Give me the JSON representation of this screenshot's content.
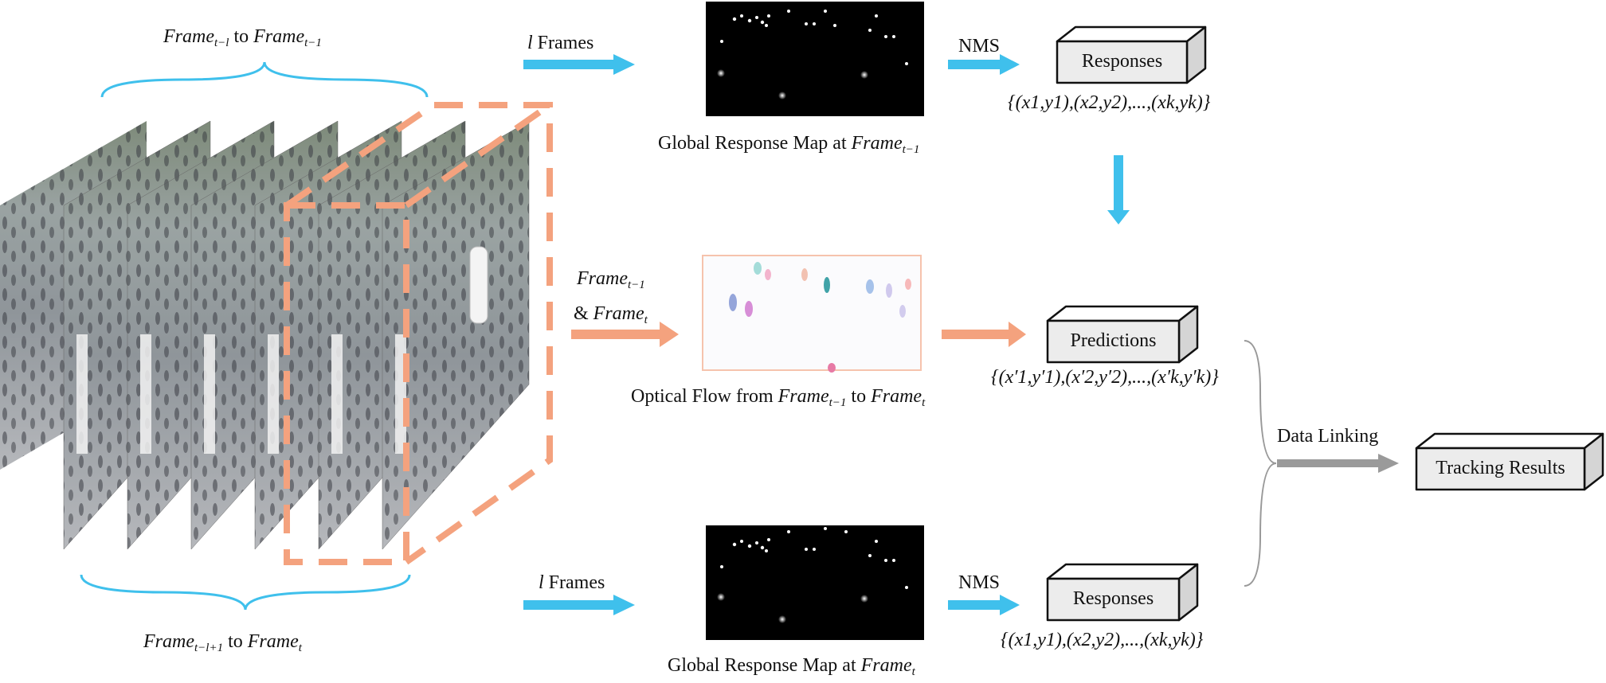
{
  "labels": {
    "frame": "Frame",
    "to": "to",
    "amp": "&",
    "l_var": "l",
    "frames_word": "Frames",
    "nms": "NMS",
    "data_linking": "Data Linking",
    "sub_t_minus_l": "t−l",
    "sub_t_minus_1": "t−1",
    "sub_t": "t",
    "sub_t_minus_l_plus_1": "t−l+1"
  },
  "captions": {
    "global_map_prefix": "Global Response Map at",
    "optical_flow_prefix": "Optical Flow from"
  },
  "boxes": {
    "responses_top": "Responses",
    "predictions": "Predictions",
    "responses_bottom": "Responses",
    "tracking": "Tracking Results"
  },
  "sets": {
    "responses_list": "{(x1,y1),(x2,y2),...,(xk,yk)}",
    "predictions_list": "{(x′1,y′1),(x′2,y′2),...,(x′k,y′k)}"
  },
  "colors": {
    "blue_arrow": "#3fc0ec",
    "orange": "#f4a27e",
    "gray_arrow": "#9a9a9a",
    "box_fill": "#ececec"
  }
}
